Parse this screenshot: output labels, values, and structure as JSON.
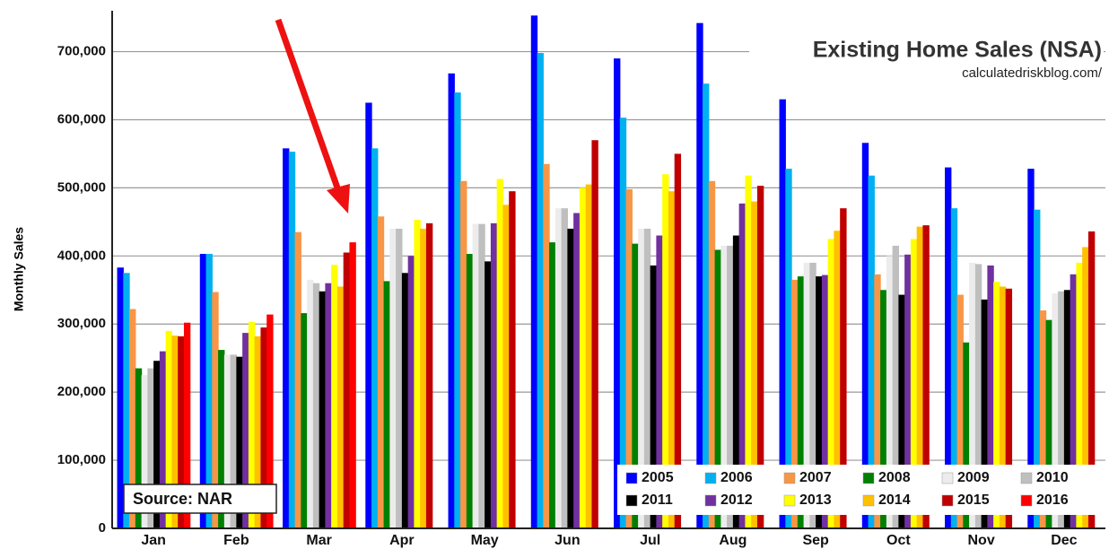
{
  "chart_data": {
    "type": "bar",
    "title": "Existing Home Sales (NSA)",
    "subtitle": "calculatedriskblog.com/",
    "y_label": "Monthly Sales",
    "source": "Source: NAR",
    "categories": [
      "Jan",
      "Feb",
      "Mar",
      "Apr",
      "May",
      "Jun",
      "Jul",
      "Aug",
      "Sep",
      "Oct",
      "Nov",
      "Dec"
    ],
    "series": [
      {
        "name": "2005",
        "color": "#0000ff",
        "values": [
          383000,
          403000,
          558000,
          625000,
          668000,
          753000,
          690000,
          742000,
          630000,
          566000,
          530000,
          528000
        ]
      },
      {
        "name": "2006",
        "color": "#00b0f0",
        "values": [
          375000,
          403000,
          553000,
          558000,
          640000,
          698000,
          603000,
          653000,
          528000,
          518000,
          470000,
          468000
        ]
      },
      {
        "name": "2007",
        "color": "#f79646",
        "values": [
          322000,
          347000,
          435000,
          458000,
          510000,
          535000,
          498000,
          510000,
          365000,
          373000,
          343000,
          320000
        ]
      },
      {
        "name": "2008",
        "color": "#008000",
        "values": [
          235000,
          262000,
          316000,
          363000,
          403000,
          420000,
          418000,
          409000,
          370000,
          350000,
          273000,
          306000
        ]
      },
      {
        "name": "2009",
        "color": "#ececec",
        "values": [
          225000,
          255000,
          365000,
          440000,
          447000,
          470000,
          440000,
          415000,
          390000,
          400000,
          390000,
          345000
        ]
      },
      {
        "name": "2010",
        "color": "#bfbfbf",
        "values": [
          235000,
          255000,
          360000,
          440000,
          447000,
          470000,
          440000,
          415000,
          390000,
          415000,
          388000,
          348000
        ]
      },
      {
        "name": "2011",
        "color": "#000000",
        "values": [
          246000,
          252000,
          348000,
          375000,
          392000,
          440000,
          386000,
          430000,
          370000,
          343000,
          336000,
          350000
        ]
      },
      {
        "name": "2012",
        "color": "#7030a0",
        "values": [
          260000,
          287000,
          360000,
          400000,
          448000,
          463000,
          430000,
          477000,
          372000,
          402000,
          386000,
          373000
        ]
      },
      {
        "name": "2013",
        "color": "#ffff00",
        "values": [
          290000,
          303000,
          387000,
          453000,
          513000,
          500000,
          520000,
          518000,
          425000,
          425000,
          362000,
          390000
        ]
      },
      {
        "name": "2014",
        "color": "#ffc000",
        "values": [
          283000,
          282000,
          355000,
          440000,
          475000,
          505000,
          495000,
          480000,
          437000,
          443000,
          355000,
          413000
        ]
      },
      {
        "name": "2015",
        "color": "#c00000",
        "values": [
          282000,
          295000,
          405000,
          448000,
          495000,
          570000,
          550000,
          503000,
          470000,
          445000,
          352000,
          436000
        ]
      },
      {
        "name": "2016",
        "color": "#ff0000",
        "values": [
          302000,
          314000,
          420000,
          null,
          null,
          null,
          null,
          null,
          null,
          null,
          null,
          null
        ]
      }
    ],
    "ylim": [
      0,
      760000
    ],
    "yticks": [
      0,
      {
        "value": 100000,
        "label": "100,000"
      },
      {
        "value": 200000,
        "label": "200,000"
      },
      {
        "value": 300000,
        "label": "300,000"
      },
      {
        "value": 400000,
        "label": "400,000"
      },
      {
        "value": 500000,
        "label": "500,000"
      },
      {
        "value": 600000,
        "label": "600,000"
      },
      {
        "value": 700000,
        "label": "700,000"
      }
    ],
    "grid": true
  }
}
